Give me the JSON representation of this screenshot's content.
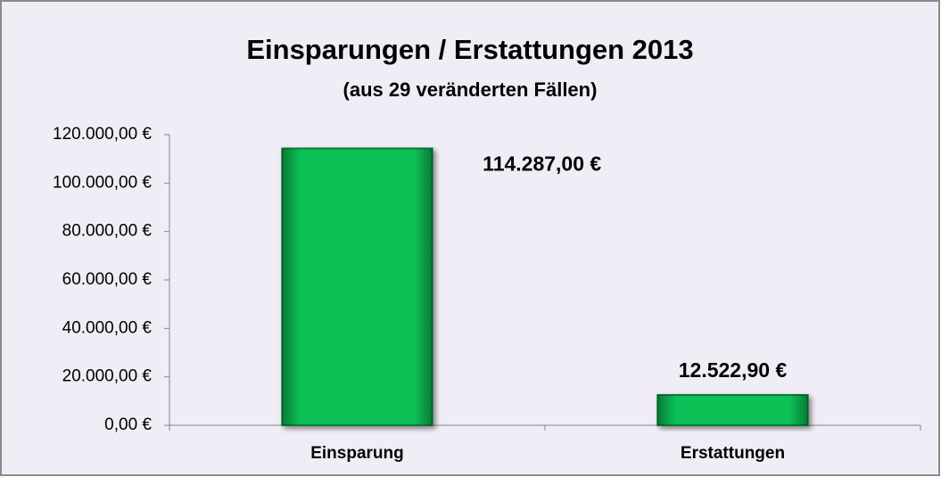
{
  "chart_data": {
    "type": "bar",
    "title": "Einsparungen / Erstattungen 2013",
    "subtitle": "(aus 29 veränderten Fällen)",
    "categories": [
      "Einsparung",
      "Erstattungen"
    ],
    "values": [
      114287,
      12522.9
    ],
    "value_labels": [
      "114.287,00 €",
      "12.522,90 €"
    ],
    "color": "#0dbf55",
    "ylim": [
      0,
      120000
    ],
    "yticks": [
      {
        "value": 0,
        "label": "0,00 €"
      },
      {
        "value": 20000,
        "label": "20.000,00 €"
      },
      {
        "value": 40000,
        "label": "40.000,00 €"
      },
      {
        "value": 60000,
        "label": "60.000,00 €"
      },
      {
        "value": 80000,
        "label": "80.000,00 €"
      },
      {
        "value": 100000,
        "label": "100.000,00 €"
      },
      {
        "value": 120000,
        "label": "120.000,00 €"
      }
    ],
    "grid": false
  }
}
